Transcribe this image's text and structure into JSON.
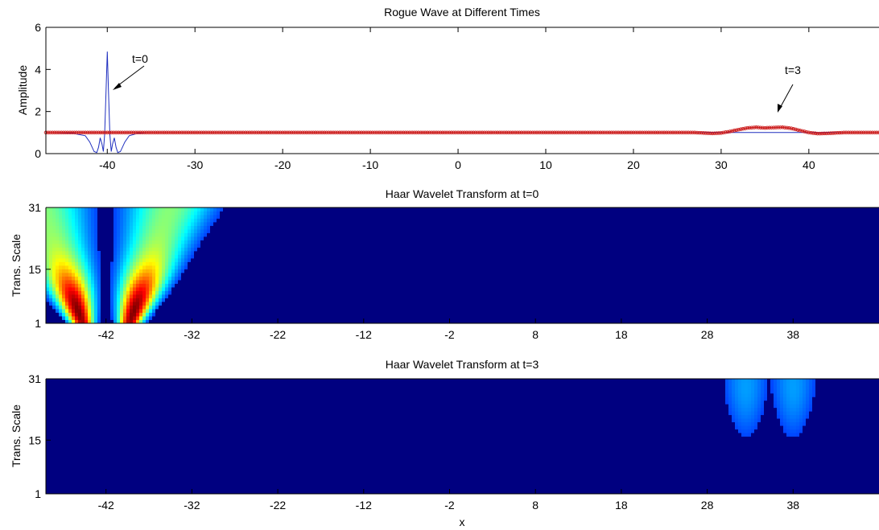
{
  "chart_data": [
    {
      "type": "line",
      "title": "Rogue Wave at Different Times",
      "xlabel": "",
      "ylabel": "Amplitude",
      "xlim": [
        -47,
        48
      ],
      "ylim": [
        0,
        6
      ],
      "xticks": [
        -40,
        -30,
        -20,
        -10,
        0,
        10,
        20,
        30,
        40
      ],
      "yticks": [
        0,
        2,
        4,
        6
      ],
      "annotations": [
        "t=0",
        "t=3"
      ],
      "series": [
        {
          "label": "t=0",
          "color": "#1f2fbf",
          "x": [
            -47,
            -44,
            -42.5,
            -42,
            -41.5,
            -41.2,
            -41,
            -40.8,
            -40.6,
            -40.45,
            -40.3,
            -40.15,
            -40,
            -39.85,
            -39.7,
            -39.55,
            -39.4,
            -39.2,
            -39,
            -38.8,
            -38.5,
            -38,
            -37.5,
            -36.5,
            -35,
            -32,
            48
          ],
          "y": [
            1,
            0.97,
            0.85,
            0.55,
            0.1,
            0.05,
            0.3,
            0.75,
            0.45,
            0.1,
            0.9,
            2.8,
            4.85,
            2.8,
            0.9,
            0.1,
            0.45,
            0.75,
            0.3,
            0.05,
            0.1,
            0.55,
            0.85,
            0.97,
            1.0,
            1.0,
            1.0
          ]
        },
        {
          "label": "t=3",
          "color": "#cc1e1e",
          "x": [
            -47,
            27,
            28,
            29,
            30,
            31,
            32,
            33,
            34,
            35,
            36,
            37,
            38,
            39,
            40,
            41,
            42,
            43,
            44,
            48
          ],
          "y": [
            1.0,
            1.0,
            0.98,
            0.96,
            0.98,
            1.05,
            1.14,
            1.22,
            1.25,
            1.22,
            1.24,
            1.25,
            1.2,
            1.1,
            1.0,
            0.95,
            0.96,
            0.98,
            1.0,
            1.0
          ]
        }
      ]
    },
    {
      "type": "heatmap",
      "title": "Haar Wavelet Transform at t=0",
      "xlabel": "",
      "ylabel": "Trans. Scale",
      "xlim": [
        -49,
        48
      ],
      "ylim": [
        1,
        31
      ],
      "xticks": [
        -42,
        -32,
        -22,
        -12,
        -2,
        8,
        18,
        28,
        38
      ],
      "yticks": [
        1,
        15,
        31
      ],
      "colormap": "jet",
      "background": "#000080",
      "features": [
        {
          "center": -42,
          "spread": 5,
          "peak_x": -42,
          "peak_scale": 4,
          "peak": 1.0,
          "notch": true
        }
      ]
    },
    {
      "type": "heatmap",
      "title": "Haar Wavelet Transform at t=3",
      "xlabel": "x",
      "ylabel": "Trans. Scale",
      "xlim": [
        -49,
        48
      ],
      "ylim": [
        1,
        31
      ],
      "xticks": [
        -42,
        -32,
        -22,
        -12,
        -2,
        8,
        18,
        28,
        38
      ],
      "yticks": [
        1,
        15,
        31
      ],
      "colormap": "jet",
      "background": "#000080",
      "features": [
        {
          "center": 32.5,
          "spread": 1.6,
          "peak_x": 32.5,
          "peak_scale": 29,
          "peak": 0.2,
          "notch": false
        },
        {
          "center": 38,
          "spread": 1.6,
          "peak_x": 38,
          "peak_scale": 29,
          "peak": 0.2,
          "notch": false
        }
      ]
    }
  ]
}
